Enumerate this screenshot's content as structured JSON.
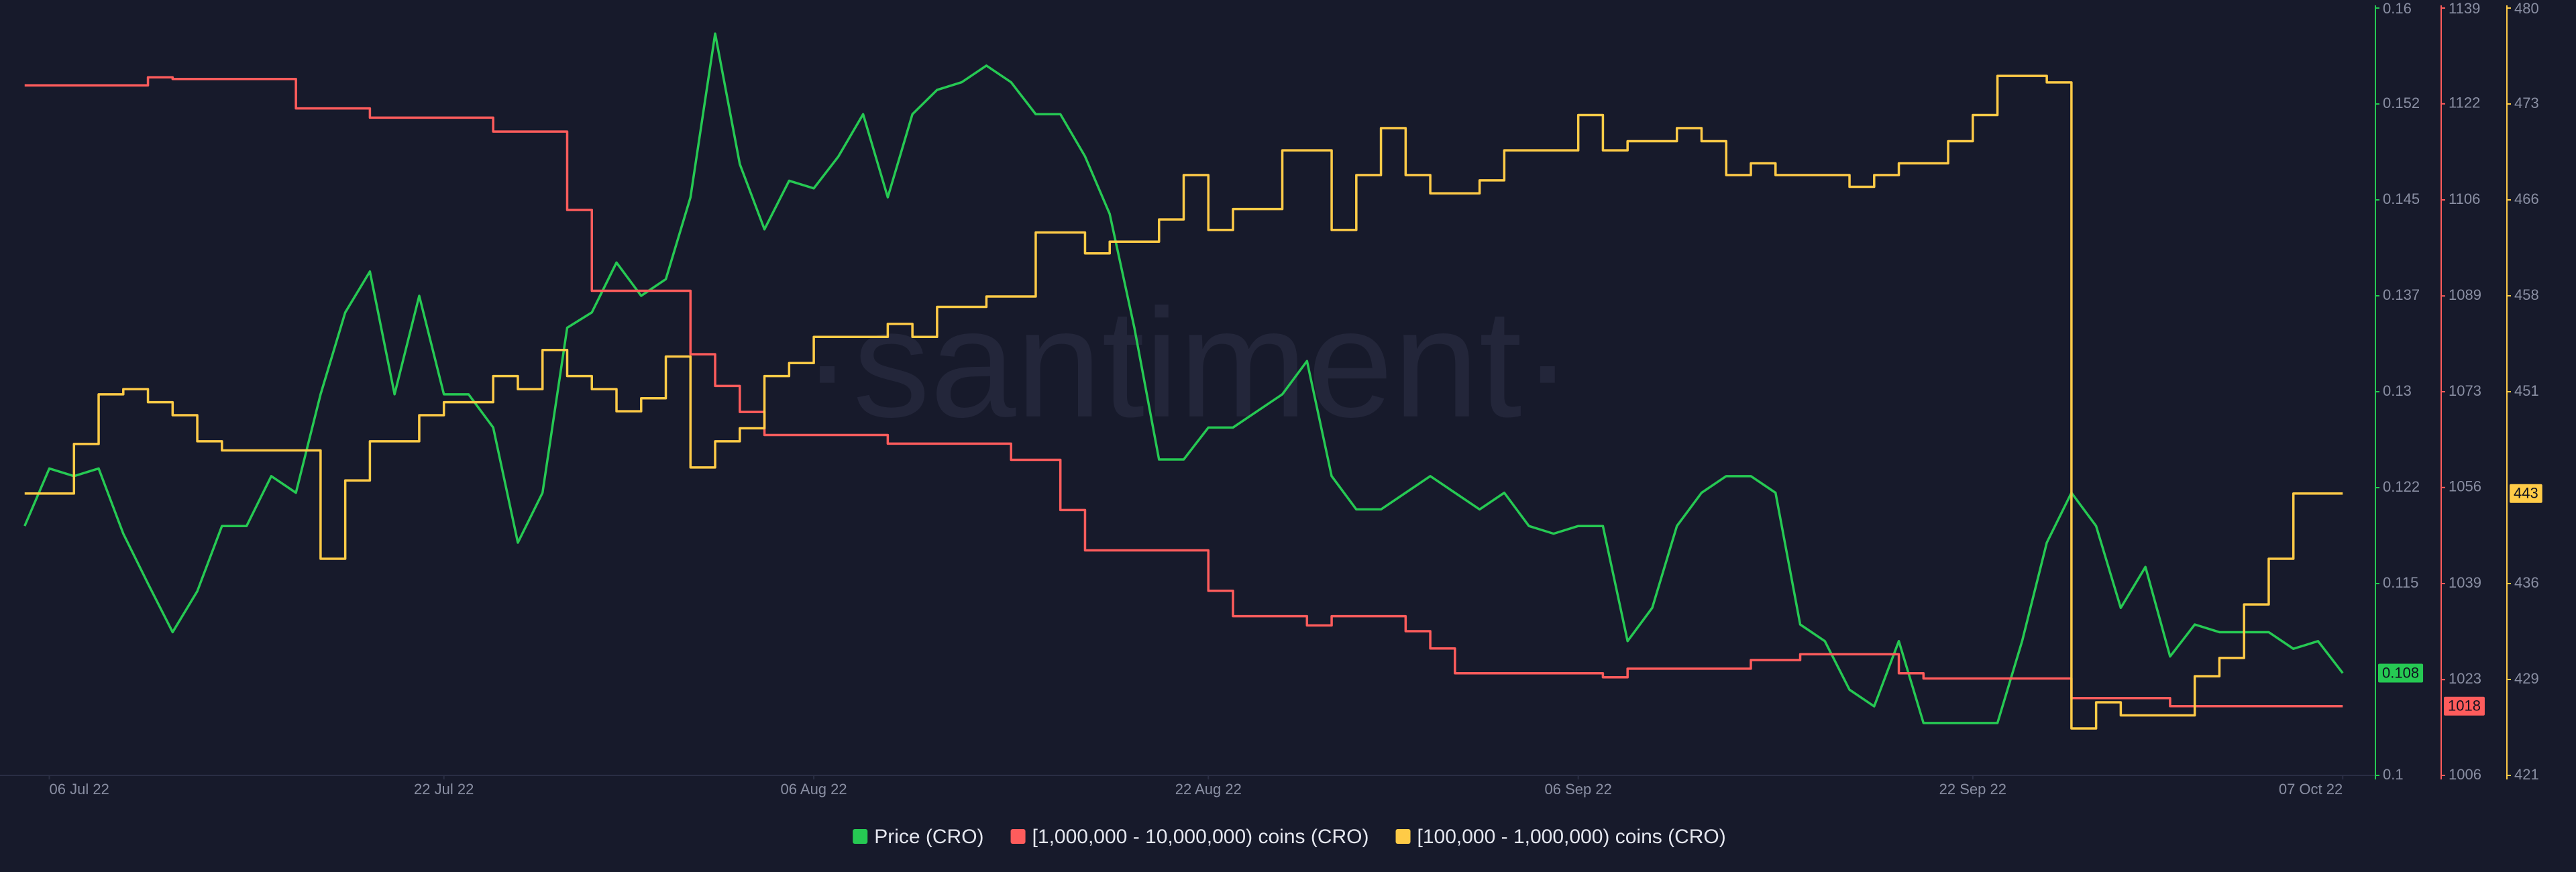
{
  "chart_data": {
    "type": "line",
    "watermark": "·santiment·",
    "x": [
      "2022-07-05",
      "2022-07-06",
      "2022-07-07",
      "2022-07-08",
      "2022-07-09",
      "2022-07-10",
      "2022-07-11",
      "2022-07-12",
      "2022-07-13",
      "2022-07-14",
      "2022-07-15",
      "2022-07-16",
      "2022-07-17",
      "2022-07-18",
      "2022-07-19",
      "2022-07-20",
      "2022-07-21",
      "2022-07-22",
      "2022-07-23",
      "2022-07-24",
      "2022-07-25",
      "2022-07-26",
      "2022-07-27",
      "2022-07-28",
      "2022-07-29",
      "2022-07-30",
      "2022-07-31",
      "2022-08-01",
      "2022-08-02",
      "2022-08-03",
      "2022-08-04",
      "2022-08-05",
      "2022-08-06",
      "2022-08-07",
      "2022-08-08",
      "2022-08-09",
      "2022-08-10",
      "2022-08-11",
      "2022-08-12",
      "2022-08-13",
      "2022-08-14",
      "2022-08-15",
      "2022-08-16",
      "2022-08-17",
      "2022-08-18",
      "2022-08-19",
      "2022-08-20",
      "2022-08-21",
      "2022-08-22",
      "2022-08-23",
      "2022-08-24",
      "2022-08-25",
      "2022-08-26",
      "2022-08-27",
      "2022-08-28",
      "2022-08-29",
      "2022-08-30",
      "2022-08-31",
      "2022-09-01",
      "2022-09-02",
      "2022-09-03",
      "2022-09-04",
      "2022-09-05",
      "2022-09-06",
      "2022-09-07",
      "2022-09-08",
      "2022-09-09",
      "2022-09-10",
      "2022-09-11",
      "2022-09-12",
      "2022-09-13",
      "2022-09-14",
      "2022-09-15",
      "2022-09-16",
      "2022-09-17",
      "2022-09-18",
      "2022-09-19",
      "2022-09-20",
      "2022-09-21",
      "2022-09-22",
      "2022-09-23",
      "2022-09-24",
      "2022-09-25",
      "2022-09-26",
      "2022-09-27",
      "2022-09-28",
      "2022-09-29",
      "2022-09-30",
      "2022-10-01",
      "2022-10-02",
      "2022-10-03",
      "2022-10-04",
      "2022-10-05",
      "2022-10-06",
      "2022-10-07"
    ],
    "xlim": [
      "2022-07-04",
      "2022-10-08"
    ],
    "xticks": [
      {
        "value": "2022-07-06",
        "label": "06 Jul 22"
      },
      {
        "value": "2022-07-22",
        "label": "22 Jul 22"
      },
      {
        "value": "2022-08-06",
        "label": "06 Aug 22"
      },
      {
        "value": "2022-08-22",
        "label": "22 Aug 22"
      },
      {
        "value": "2022-09-06",
        "label": "06 Sep 22"
      },
      {
        "value": "2022-09-22",
        "label": "22 Sep 22"
      },
      {
        "value": "2022-10-07",
        "label": "07 Oct 22"
      }
    ],
    "ylim": [
      0.1,
      0.16
    ],
    "yticks": [
      0.1,
      0.115,
      {
        "value": 0.1225,
        "label": "0.122"
      },
      0.13,
      {
        "value": 0.1375,
        "label": "0.137"
      },
      0.145,
      {
        "value": 0.1525,
        "label": "0.152"
      },
      0.16
    ],
    "y2lim": [
      1006,
      1139
    ],
    "y2ticks": [
      1006,
      {
        "value": 1022.6,
        "label": "1023"
      },
      {
        "value": 1039.25,
        "label": "1039"
      },
      {
        "value": 1055.9,
        "label": "1056"
      },
      {
        "value": 1072.5,
        "label": "1073"
      },
      {
        "value": 1089.1,
        "label": "1089"
      },
      {
        "value": 1105.75,
        "label": "1106"
      },
      {
        "value": 1122.4,
        "label": "1122"
      },
      1139
    ],
    "y3lim": [
      421.4,
      480.2
    ],
    "y3ticks": [
      {
        "value": 421.4,
        "label": "421"
      },
      {
        "value": 428.75,
        "label": "429"
      },
      {
        "value": 436.1,
        "label": "436"
      },
      {
        "value": 450.8,
        "label": "451"
      },
      {
        "value": 458.15,
        "label": "458"
      },
      {
        "value": 465.5,
        "label": "466"
      },
      {
        "value": 472.85,
        "label": "473"
      },
      {
        "value": 480.2,
        "label": "480"
      }
    ],
    "series": [
      {
        "name": "Price (CRO)",
        "color": "#26c953",
        "axis": "y",
        "values": [
          0.1195,
          0.124,
          0.1234,
          0.124,
          0.1189,
          0.115,
          0.1112,
          0.1144,
          0.1195,
          0.1195,
          0.1234,
          0.1221,
          0.1298,
          0.1362,
          0.1394,
          0.1298,
          0.1375,
          0.1298,
          0.1298,
          0.1272,
          0.1182,
          0.1221,
          0.135,
          0.1362,
          0.1401,
          0.1375,
          0.1388,
          0.1452,
          0.158,
          0.1478,
          0.1427,
          0.1465,
          0.1459,
          0.1484,
          0.1517,
          0.1452,
          0.1517,
          0.1536,
          0.1542,
          0.1555,
          0.1542,
          0.1517,
          0.1517,
          0.1484,
          0.1439,
          0.135,
          0.1247,
          0.1247,
          0.1272,
          0.1272,
          0.1285,
          0.1298,
          0.1324,
          0.1234,
          0.1208,
          0.1208,
          0.1221,
          0.1234,
          0.1221,
          0.1208,
          0.1221,
          0.1195,
          0.1189,
          0.1195,
          0.1195,
          0.1105,
          0.1131,
          0.1195,
          0.1221,
          0.1234,
          0.1234,
          0.1221,
          0.1118,
          0.1105,
          0.1067,
          0.1054,
          0.1105,
          0.1041,
          0.1041,
          0.1041,
          0.1041,
          0.1105,
          0.1182,
          0.1221,
          0.1195,
          0.1131,
          0.1163,
          0.1093,
          0.1118,
          0.1112,
          0.1112,
          0.1112,
          0.1099,
          0.1105,
          0.108
        ]
      },
      {
        "name": "[1,000,000 - 10,000,000) coins (CRO)",
        "color": "#ff5c5c",
        "axis": "y2",
        "values": [
          1125.6,
          1125.6,
          1125.6,
          1125.6,
          1125.6,
          1127,
          1126.7,
          1126.7,
          1126.7,
          1126.7,
          1126.7,
          1121.6,
          1121.6,
          1121.6,
          1120,
          1120,
          1120,
          1120,
          1120,
          1117.6,
          1117.6,
          1117.6,
          1104,
          1090,
          1090,
          1090,
          1090,
          1079,
          1073.5,
          1069,
          1065,
          1065,
          1065,
          1065,
          1065,
          1063.5,
          1063.5,
          1063.5,
          1063.5,
          1063.5,
          1060.7,
          1060.7,
          1052,
          1045,
          1045,
          1045,
          1045,
          1045,
          1038,
          1033.6,
          1033.6,
          1033.6,
          1032,
          1033.6,
          1033.6,
          1033.6,
          1031,
          1028,
          1023.7,
          1023.7,
          1023.7,
          1023.7,
          1023.7,
          1023.7,
          1023,
          1024.5,
          1024.5,
          1024.5,
          1024.5,
          1024.5,
          1026,
          1026,
          1027,
          1027,
          1027,
          1027,
          1023.7,
          1022.8,
          1022.8,
          1022.8,
          1022.8,
          1022.8,
          1022.8,
          1019.4,
          1019.4,
          1019.4,
          1019.4,
          1018,
          1018,
          1018,
          1018,
          1018,
          1018,
          1018,
          1018
        ]
      },
      {
        "name": "[100,000  - 1,000,000) coins (CRO)",
        "color": "#ffcb47",
        "axis": "y3",
        "values": [
          443,
          443,
          446.8,
          450.6,
          451,
          450,
          449,
          447,
          446.3,
          446.3,
          446.3,
          446.3,
          438,
          444,
          447,
          447,
          449,
          450,
          450,
          452,
          451,
          454,
          452,
          451,
          449.3,
          450.3,
          453.5,
          445,
          447,
          448,
          452,
          453,
          455,
          455,
          455,
          456,
          455,
          457.3,
          457.3,
          458.1,
          458.1,
          463,
          463,
          461.4,
          462.3,
          462.3,
          464,
          467.4,
          463.2,
          464.8,
          464.8,
          469.3,
          469.3,
          463.2,
          467.4,
          471,
          467.4,
          466,
          466,
          467,
          469.3,
          469.3,
          469.3,
          472,
          469.3,
          470,
          470,
          471,
          470,
          467.4,
          468.3,
          467.4,
          467.4,
          467.4,
          466.5,
          467.4,
          468.3,
          468.3,
          470,
          472,
          475,
          475,
          474.5,
          425,
          427,
          426,
          426,
          426,
          429,
          430.4,
          434.5,
          438,
          443,
          443,
          443
        ]
      }
    ]
  }
}
